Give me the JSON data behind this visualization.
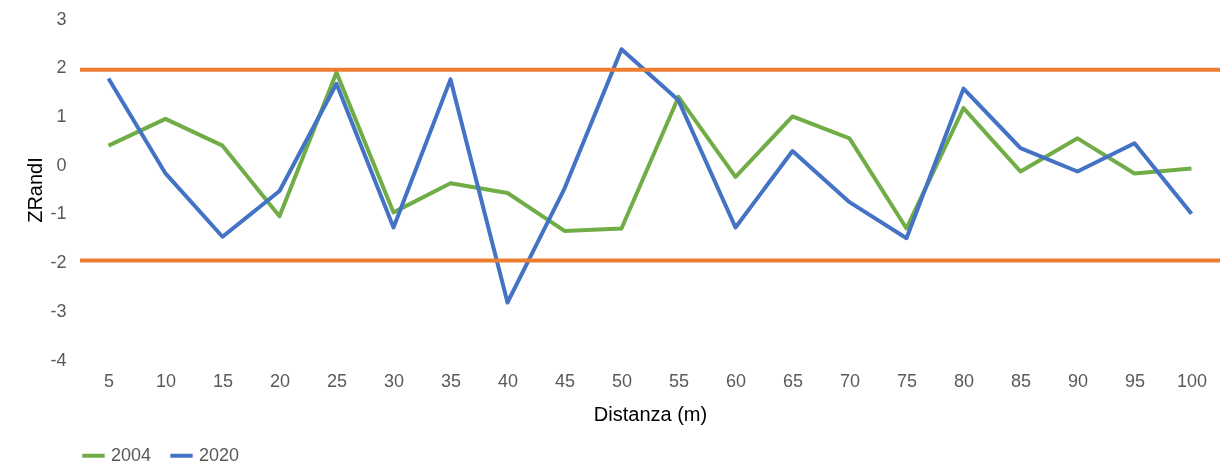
{
  "chart_data": {
    "type": "line",
    "xlabel": "Distanza (m)",
    "ylabel": "ZRandI",
    "categories": [
      "5",
      "10",
      "15",
      "20",
      "25",
      "30",
      "35",
      "40",
      "45",
      "50",
      "55",
      "60",
      "65",
      "70",
      "75",
      "80",
      "85",
      "90",
      "95",
      "100"
    ],
    "series": [
      {
        "name": "2004",
        "color": "#70ad47",
        "values": [
          0.4,
          0.95,
          0.4,
          -1.05,
          1.9,
          -0.97,
          -0.37,
          -0.57,
          -1.35,
          -1.3,
          1.4,
          -0.24,
          1.0,
          0.55,
          -1.3,
          1.17,
          -0.13,
          0.55,
          -0.17,
          -0.07
        ]
      },
      {
        "name": "2020",
        "color": "#4472c4",
        "values": [
          1.78,
          -0.17,
          -1.47,
          -0.53,
          1.67,
          -1.28,
          1.76,
          -2.82,
          -0.48,
          2.38,
          1.33,
          -1.28,
          0.29,
          -0.76,
          -1.5,
          1.57,
          0.35,
          -0.13,
          0.45,
          -1.0
        ]
      }
    ],
    "ref_lines": [
      {
        "axis": "y",
        "value": 1.96,
        "color": "#ed7d31"
      },
      {
        "axis": "y",
        "value": -1.96,
        "color": "#ed7d31"
      }
    ],
    "ylim": [
      -4,
      3
    ],
    "yticks": [
      -4,
      -3,
      -2,
      -1,
      0,
      1,
      2,
      3
    ],
    "grid": false,
    "legend": "bottom",
    "marker": "none",
    "line_style": "solid"
  }
}
